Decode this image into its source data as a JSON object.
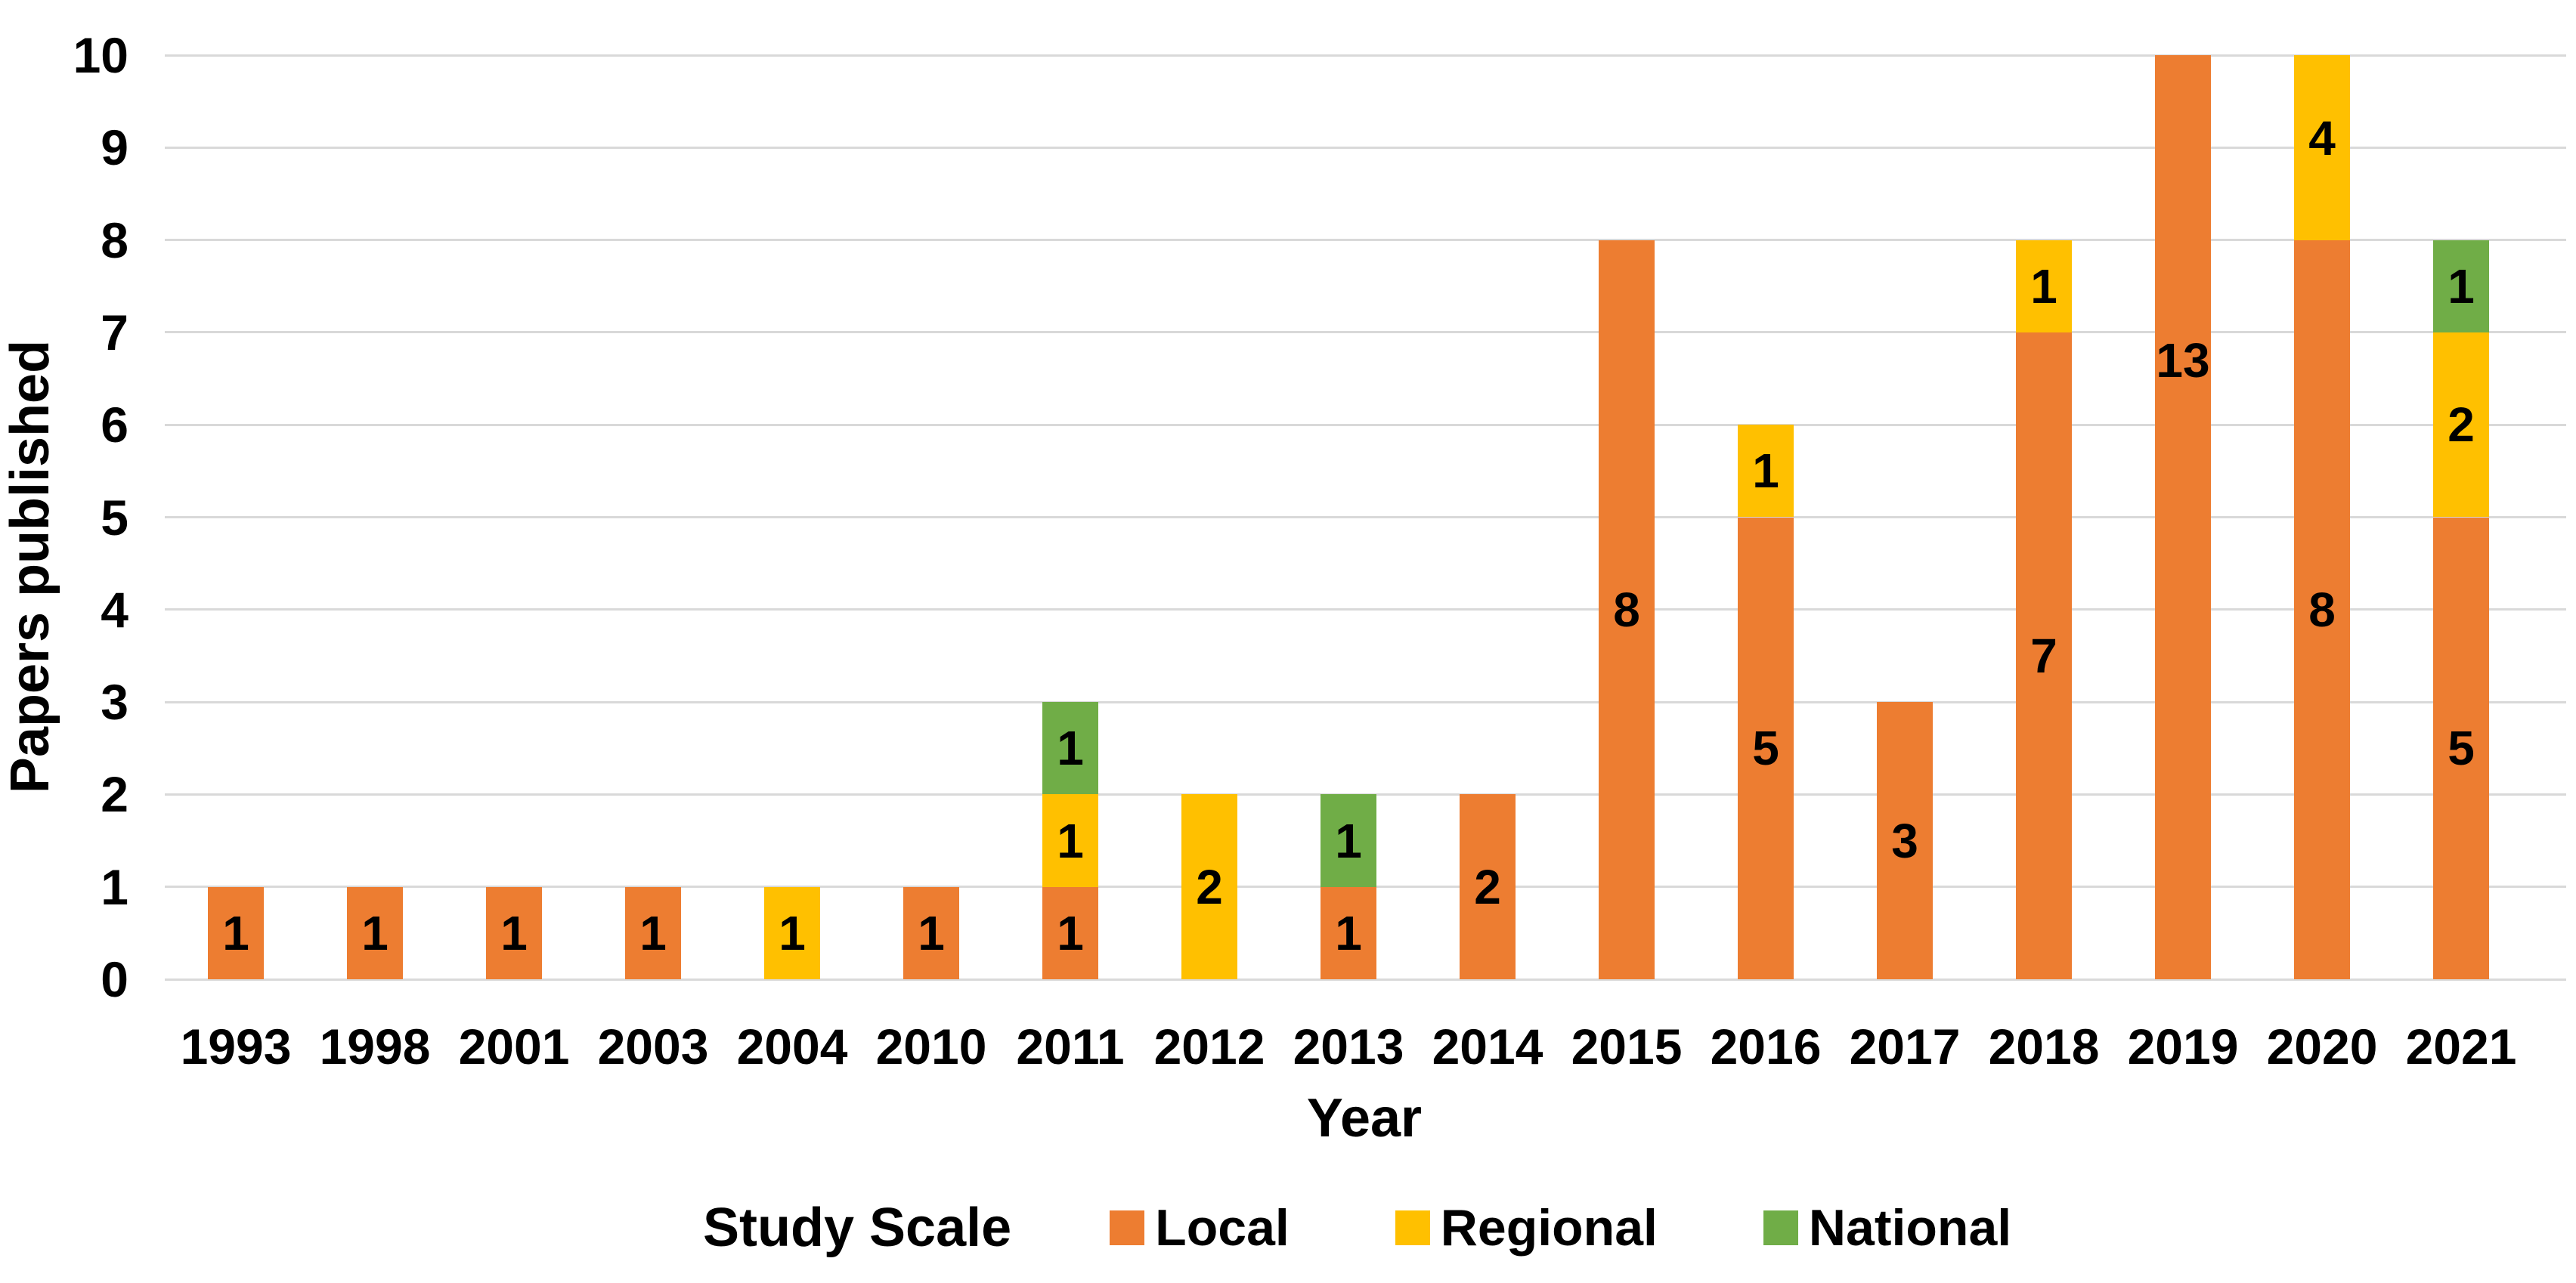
{
  "chart_data": {
    "type": "bar",
    "stacked": true,
    "title": "",
    "xlabel": "Year",
    "ylabel": "Papers published",
    "ylim": [
      0,
      10
    ],
    "yticks": [
      0,
      1,
      2,
      3,
      4,
      5,
      6,
      7,
      8,
      9,
      10
    ],
    "grid": true,
    "gridline_color": "#D9D9D9",
    "background_color": "#FFFFFF",
    "text_color": "#000000",
    "categories": [
      "1993",
      "1998",
      "2001",
      "2003",
      "2004",
      "2010",
      "2011",
      "2012",
      "2013",
      "2014",
      "2015",
      "2016",
      "2017",
      "2018",
      "2019",
      "2020",
      "2021"
    ],
    "series": [
      {
        "name": "Local",
        "color": "#ED7D31",
        "values": [
          1,
          1,
          1,
          1,
          0,
          1,
          1,
          0,
          1,
          2,
          8,
          5,
          3,
          7,
          13,
          8,
          5
        ]
      },
      {
        "name": "Regional",
        "color": "#FFC000",
        "values": [
          0,
          0,
          0,
          0,
          1,
          0,
          1,
          2,
          0,
          0,
          0,
          1,
          0,
          1,
          0,
          4,
          2
        ]
      },
      {
        "name": "National",
        "color": "#70AD47",
        "values": [
          0,
          0,
          0,
          0,
          0,
          0,
          1,
          0,
          1,
          0,
          0,
          0,
          0,
          0,
          0,
          0,
          1
        ]
      }
    ],
    "data_labels_shown": true,
    "bars_clipped_at_ymax": [
      "2019",
      "2020"
    ],
    "label_overrides": [
      {
        "category": "2019",
        "series": "Local",
        "label_y": 6.7
      },
      {
        "category": "2020",
        "series": "Regional",
        "label_y": 9.1
      }
    ],
    "legend": {
      "title": "Study Scale",
      "position": "bottom",
      "entries": [
        "Local",
        "Regional",
        "National"
      ]
    }
  }
}
